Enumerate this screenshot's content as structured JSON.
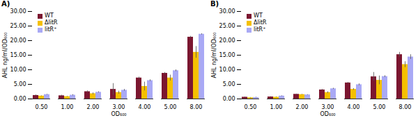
{
  "chart_data": [
    {
      "type": "bar",
      "title": "A)",
      "xlabel": "OD₆₀₀",
      "ylabel": "AHL ng/ml/OD₆₀₀",
      "categories": [
        "0.50",
        "1.00",
        "2.00",
        "3.00",
        "4.00",
        "5.00",
        "8.00"
      ],
      "series": [
        {
          "name": "WT",
          "color": "#7b1630",
          "values": [
            1.2,
            1.1,
            2.5,
            3.3,
            7.2,
            8.8,
            21.2
          ],
          "errors": [
            0.2,
            0.2,
            0.3,
            2.0,
            0.3,
            0.3,
            0.3
          ]
        },
        {
          "name": "ΔlitR",
          "color": "#f5c000",
          "values": [
            1.0,
            0.8,
            1.8,
            2.2,
            4.3,
            7.2,
            16.0
          ],
          "errors": [
            0.1,
            0.1,
            0.3,
            0.5,
            1.5,
            1.0,
            2.0
          ]
        },
        {
          "name": "litR⁺",
          "color": "#a9a9f5",
          "values": [
            1.5,
            1.3,
            2.3,
            3.0,
            6.3,
            9.7,
            22.2
          ],
          "errors": [
            0.1,
            0.2,
            0.2,
            0.3,
            0.3,
            0.3,
            0.2
          ]
        }
      ],
      "ylim": [
        0,
        30
      ],
      "yticks": [
        {
          "value": 0,
          "label": "0.00"
        },
        {
          "value": 5,
          "label": "5.00"
        },
        {
          "value": 10,
          "label": "10.00"
        },
        {
          "value": 15,
          "label": "15.00"
        },
        {
          "value": 20,
          "label": "20.00"
        },
        {
          "value": 25,
          "label": "25.00"
        },
        {
          "value": 30,
          "label": "30.00"
        }
      ],
      "legend": "top-left",
      "grid": false
    },
    {
      "type": "bar",
      "title": "B)",
      "xlabel": "OD₆₀₀",
      "ylabel": "AHL ng/ml/OD₆₀₀",
      "categories": [
        "0.50",
        "1.00",
        "2.00",
        "3.00",
        "4.00",
        "5.00",
        "8.00"
      ],
      "series": [
        {
          "name": "WT",
          "color": "#7b1630",
          "values": [
            0.6,
            0.7,
            1.6,
            3.1,
            5.5,
            7.6,
            15.2
          ],
          "errors": [
            0.1,
            0.1,
            0.1,
            0.2,
            0.2,
            1.5,
            0.8
          ]
        },
        {
          "name": "ΔlitR",
          "color": "#f5c000",
          "values": [
            0.4,
            0.6,
            1.5,
            2.2,
            3.3,
            6.4,
            11.8
          ],
          "errors": [
            0.1,
            0.1,
            0.1,
            0.3,
            0.3,
            1.5,
            1.0
          ]
        },
        {
          "name": "litR⁺",
          "color": "#a9a9f5",
          "values": [
            0.5,
            1.0,
            1.4,
            3.5,
            4.9,
            7.7,
            14.4
          ],
          "errors": [
            0.1,
            0.1,
            0.1,
            0.2,
            0.3,
            0.3,
            0.8
          ]
        }
      ],
      "ylim": [
        0,
        30
      ],
      "yticks": [
        {
          "value": 0,
          "label": "0.00"
        },
        {
          "value": 5,
          "label": "5.00"
        },
        {
          "value": 10,
          "label": "10.00"
        },
        {
          "value": 15,
          "label": "15.00"
        },
        {
          "value": 20,
          "label": "20.00"
        },
        {
          "value": 25,
          "label": "25.00"
        },
        {
          "value": 30,
          "label": "30.00"
        }
      ],
      "legend": "top-left",
      "grid": false
    }
  ]
}
